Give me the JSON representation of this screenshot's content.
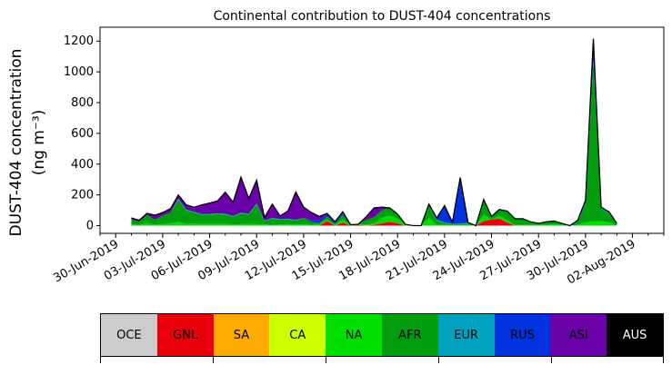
{
  "chart_data": {
    "type": "area",
    "title": "Continental contribution to DUST-404 concentrations",
    "ylabel_line1": "DUST-404 concentration",
    "ylabel_line2": "(ng m⁻³)",
    "xlabel": "",
    "ylim": [
      -50,
      1290
    ],
    "xlim": [
      "2019-06-29",
      "2019-08-04"
    ],
    "grid": false,
    "y_ticks": [
      0,
      200,
      400,
      600,
      800,
      1000,
      1200
    ],
    "x_ticks": [
      "30-Jun-2019",
      "03-Jul-2019",
      "06-Jul-2019",
      "09-Jul-2019",
      "12-Jul-2019",
      "15-Jul-2019",
      "18-Jul-2019",
      "21-Jul-2019",
      "24-Jul-2019",
      "27-Jul-2019",
      "30-Jul-2019",
      "02-Aug-2019"
    ],
    "stack_order": [
      "GNL",
      "NA",
      "AFR",
      "EUR",
      "RUS",
      "ASI"
    ],
    "x": [
      "2019-07-01",
      "2019-07-01 12:00",
      "2019-07-02",
      "2019-07-02 12:00",
      "2019-07-03",
      "2019-07-03 12:00",
      "2019-07-04",
      "2019-07-04 12:00",
      "2019-07-05",
      "2019-07-05 12:00",
      "2019-07-06",
      "2019-07-06 12:00",
      "2019-07-07",
      "2019-07-07 12:00",
      "2019-07-08",
      "2019-07-08 12:00",
      "2019-07-09",
      "2019-07-09 12:00",
      "2019-07-10",
      "2019-07-10 12:00",
      "2019-07-11",
      "2019-07-11 12:00",
      "2019-07-12",
      "2019-07-12 12:00",
      "2019-07-13",
      "2019-07-13 12:00",
      "2019-07-14",
      "2019-07-14 12:00",
      "2019-07-15",
      "2019-07-15 12:00",
      "2019-07-16",
      "2019-07-16 12:00",
      "2019-07-17",
      "2019-07-17 12:00",
      "2019-07-18",
      "2019-07-18 12:00",
      "2019-07-19",
      "2019-07-19 12:00",
      "2019-07-20",
      "2019-07-20 12:00",
      "2019-07-21",
      "2019-07-21 12:00",
      "2019-07-22",
      "2019-07-22 12:00",
      "2019-07-23",
      "2019-07-23 12:00",
      "2019-07-24",
      "2019-07-24 12:00",
      "2019-07-25",
      "2019-07-25 12:00",
      "2019-07-26",
      "2019-07-26 12:00",
      "2019-07-27",
      "2019-07-27 12:00",
      "2019-07-28",
      "2019-07-28 12:00",
      "2019-07-29",
      "2019-07-29 12:00",
      "2019-07-30",
      "2019-07-30 12:00",
      "2019-07-31",
      "2019-07-31 12:00",
      "2019-08-01"
    ],
    "series": [
      {
        "name": "GNL",
        "color": "#e8000b",
        "values": [
          0,
          0,
          0,
          0,
          0,
          0,
          0,
          0,
          0,
          0,
          0,
          0,
          0,
          0,
          0,
          0,
          0,
          0,
          0,
          0,
          0,
          0,
          0,
          0,
          0,
          30,
          0,
          20,
          0,
          5,
          0,
          5,
          15,
          25,
          15,
          0,
          0,
          0,
          0,
          0,
          0,
          0,
          0,
          0,
          0,
          30,
          40,
          45,
          20,
          0,
          0,
          0,
          0,
          0,
          0,
          0,
          0,
          0,
          0,
          0,
          0,
          0,
          0
        ]
      },
      {
        "name": "NA",
        "color": "#00e000",
        "values": [
          10,
          5,
          15,
          8,
          10,
          15,
          25,
          10,
          15,
          10,
          12,
          10,
          12,
          8,
          10,
          12,
          10,
          8,
          5,
          8,
          10,
          8,
          10,
          5,
          10,
          10,
          5,
          20,
          3,
          3,
          8,
          10,
          35,
          40,
          30,
          5,
          0,
          0,
          50,
          5,
          5,
          3,
          3,
          5,
          0,
          40,
          0,
          20,
          15,
          5,
          5,
          5,
          5,
          5,
          10,
          5,
          0,
          5,
          20,
          30,
          30,
          20,
          0
        ]
      },
      {
        "name": "AFR",
        "color": "#009e0f",
        "values": [
          30,
          20,
          55,
          30,
          55,
          70,
          140,
          90,
          70,
          60,
          60,
          65,
          60,
          50,
          70,
          60,
          130,
          20,
          40,
          30,
          30,
          25,
          40,
          20,
          5,
          20,
          5,
          30,
          2,
          2,
          30,
          40,
          50,
          50,
          30,
          3,
          0,
          0,
          80,
          30,
          10,
          5,
          5,
          10,
          0,
          100,
          20,
          40,
          60,
          40,
          40,
          20,
          10,
          20,
          20,
          10,
          0,
          20,
          120,
          1040,
          80,
          60,
          15
        ]
      },
      {
        "name": "EUR",
        "color": "#00a3bf",
        "values": [
          0,
          0,
          0,
          0,
          0,
          0,
          10,
          5,
          5,
          5,
          5,
          5,
          5,
          5,
          5,
          5,
          5,
          5,
          5,
          5,
          5,
          5,
          0,
          0,
          0,
          0,
          0,
          0,
          0,
          0,
          0,
          0,
          0,
          0,
          0,
          0,
          0,
          0,
          0,
          5,
          5,
          5,
          5,
          5,
          0,
          0,
          0,
          0,
          0,
          0,
          0,
          0,
          0,
          0,
          0,
          0,
          0,
          0,
          5,
          5,
          5,
          5,
          0
        ]
      },
      {
        "name": "RUS",
        "color": "#0033dd",
        "values": [
          0,
          0,
          0,
          0,
          0,
          0,
          0,
          0,
          0,
          0,
          0,
          0,
          0,
          0,
          0,
          0,
          0,
          0,
          0,
          0,
          0,
          0,
          0,
          10,
          20,
          10,
          10,
          10,
          0,
          0,
          0,
          0,
          0,
          0,
          0,
          0,
          0,
          0,
          10,
          10,
          110,
          10,
          300,
          0,
          0,
          0,
          0,
          0,
          0,
          0,
          0,
          0,
          0,
          0,
          0,
          0,
          0,
          10,
          20,
          100,
          5,
          5,
          0
        ]
      },
      {
        "name": "ASI",
        "color": "#6a00a8",
        "values": [
          10,
          10,
          10,
          30,
          20,
          25,
          25,
          30,
          30,
          60,
          70,
          80,
          140,
          90,
          230,
          100,
          150,
          20,
          90,
          20,
          50,
          180,
          70,
          50,
          25,
          10,
          5,
          10,
          0,
          0,
          20,
          60,
          20,
          0,
          0,
          0,
          0,
          0,
          0,
          0,
          0,
          0,
          0,
          0,
          0,
          0,
          0,
          0,
          0,
          0,
          0,
          0,
          0,
          0,
          0,
          0,
          0,
          0,
          0,
          40,
          0,
          0,
          0
        ]
      }
    ],
    "legend_order": [
      "OCE",
      "GNL",
      "SA",
      "CA",
      "NA",
      "AFR",
      "EUR",
      "RUS",
      "ASI",
      "AUS"
    ],
    "legend": [
      {
        "name": "OCE",
        "color": "#cccccc",
        "text_color": "#000000"
      },
      {
        "name": "GNL",
        "color": "#e8000b",
        "text_color": "#000000"
      },
      {
        "name": "SA",
        "color": "#ffaa00",
        "text_color": "#000000"
      },
      {
        "name": "CA",
        "color": "#ccff00",
        "text_color": "#000000"
      },
      {
        "name": "NA",
        "color": "#00e000",
        "text_color": "#000000"
      },
      {
        "name": "AFR",
        "color": "#009e0f",
        "text_color": "#000000"
      },
      {
        "name": "EUR",
        "color": "#00a3bf",
        "text_color": "#000000"
      },
      {
        "name": "RUS",
        "color": "#0033dd",
        "text_color": "#000000"
      },
      {
        "name": "ASI",
        "color": "#6a00a8",
        "text_color": "#000000"
      },
      {
        "name": "AUS",
        "color": "#000000",
        "text_color": "#ffffff"
      }
    ],
    "total_line_color": "#000000"
  }
}
